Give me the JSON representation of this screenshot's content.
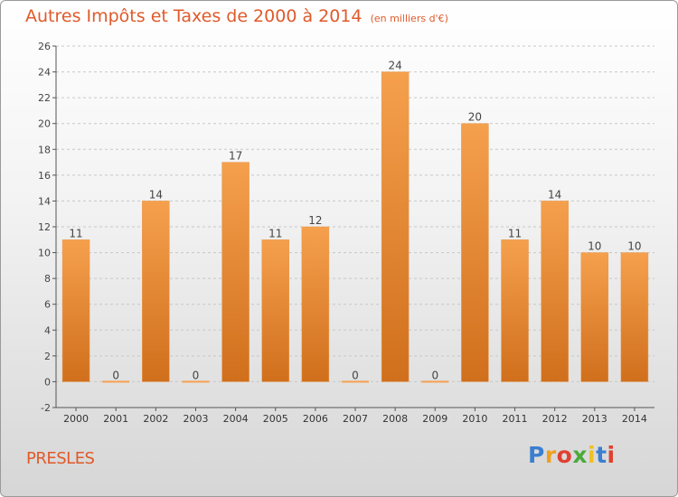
{
  "title": "Autres Impôts et Taxes de 2000 à 2014",
  "unit": "(en milliers d'€)",
  "commune": "PRESLES",
  "logo": {
    "letters": [
      {
        "ch": "P",
        "color": "#3a7fd0"
      },
      {
        "ch": "r",
        "color": "#f0a020"
      },
      {
        "ch": "o",
        "color": "#e04030"
      },
      {
        "ch": "x",
        "color": "#4aaa3a"
      },
      {
        "ch": "i",
        "color": "#f0c020"
      },
      {
        "ch": "t",
        "color": "#3a7fd0"
      },
      {
        "ch": "i",
        "color": "#e04030"
      }
    ]
  },
  "colors": {
    "bar_light": "#f5a04d",
    "bar_dark": "#d06f1c",
    "accent": "#e05a2a",
    "grid": "#c8c8c8"
  },
  "chart_data": {
    "type": "bar",
    "categories": [
      "2000",
      "2001",
      "2002",
      "2003",
      "2004",
      "2005",
      "2006",
      "2007",
      "2008",
      "2009",
      "2010",
      "2011",
      "2012",
      "2013",
      "2014"
    ],
    "values": [
      11,
      0,
      14,
      0,
      17,
      11,
      12,
      0,
      24,
      0,
      20,
      11,
      14,
      10,
      10
    ],
    "data_labels": [
      "11",
      "0",
      "14",
      "0",
      "17",
      "11",
      "12",
      "0",
      "24",
      "0",
      "20",
      "11",
      "14",
      "10",
      "10"
    ],
    "ylim": [
      -2,
      26
    ],
    "yticks": [
      -2,
      0,
      2,
      4,
      6,
      8,
      10,
      12,
      14,
      16,
      18,
      20,
      22,
      24,
      26
    ],
    "xlabel": "",
    "ylabel": "",
    "grid": true
  }
}
